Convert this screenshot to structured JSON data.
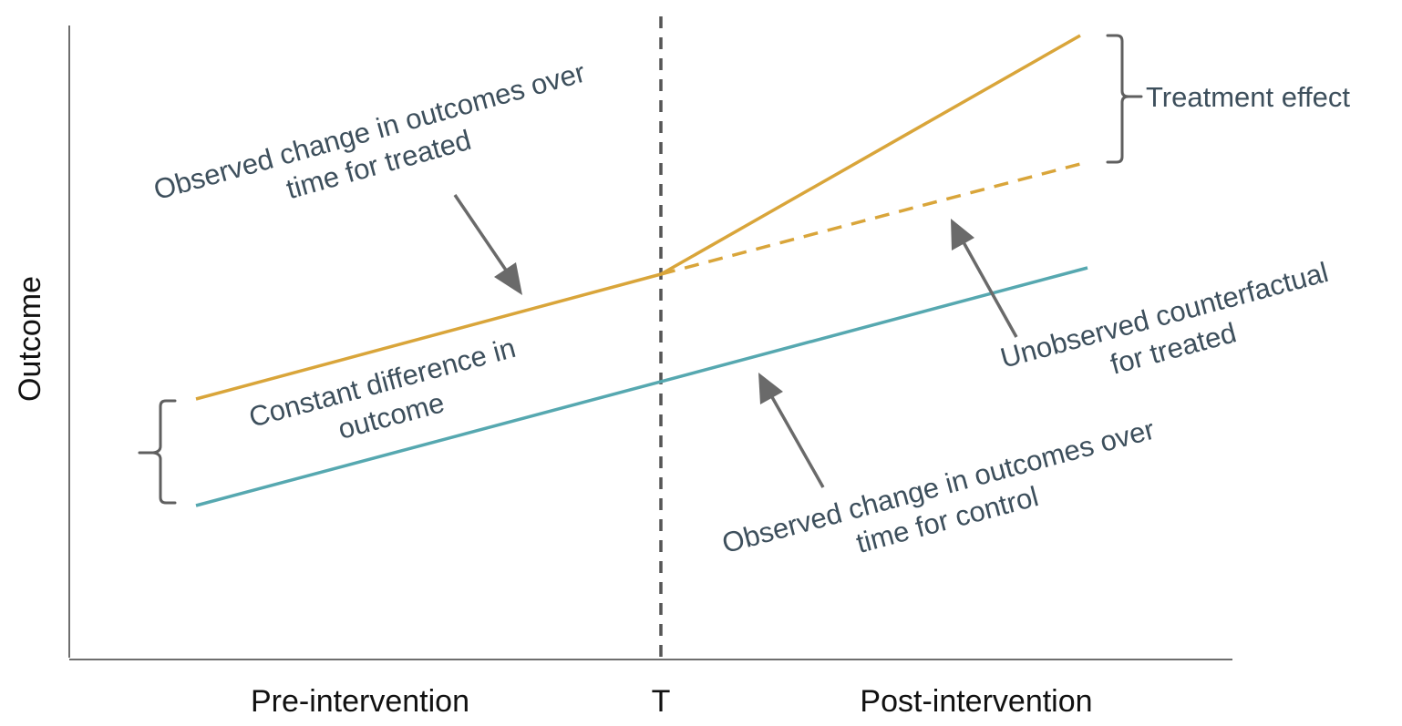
{
  "y_axis_label": "Outcome",
  "x_labels": {
    "pre": "Pre-intervention",
    "intervention": "T",
    "post": "Post-intervention"
  },
  "annotations": {
    "treated_change": [
      "Observed change in outcomes over",
      "time for treated"
    ],
    "constant_difference": [
      "Constant difference in",
      "outcome"
    ],
    "control_change": [
      "Observed change in outcomes over",
      "time for control"
    ],
    "counterfactual": [
      "Unobserved counterfactual",
      "for treated"
    ],
    "treatment_effect": "Treatment effect"
  },
  "series": {
    "treated": {
      "color": "#d9a53a",
      "style": "solid"
    },
    "counterfactual": {
      "color": "#d9a53a",
      "style": "dashed"
    },
    "control": {
      "color": "#56a8b0",
      "style": "solid"
    }
  },
  "intervention_line_color": "#555555",
  "annotation_text_color": "#3d4f5c",
  "arrow_color": "#6a6a6a"
}
